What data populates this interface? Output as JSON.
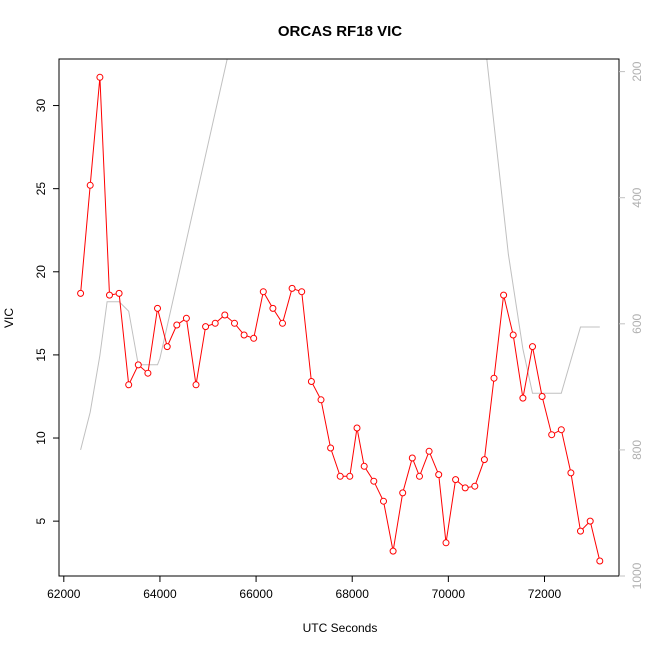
{
  "chart_data": {
    "type": "line",
    "title": "ORCAS RF18 VIC",
    "xlabel": "UTC Seconds",
    "ylabel": "VIC",
    "xlim": [
      61900,
      73550
    ],
    "ylim": [
      1.7,
      32.8
    ],
    "y2lim": [
      1000,
      180
    ],
    "x_ticks": [
      62000,
      64000,
      66000,
      68000,
      70000,
      72000
    ],
    "y_ticks": [
      5,
      10,
      15,
      20,
      25,
      30
    ],
    "y2_ticks": [
      200,
      400,
      600,
      800,
      1000
    ],
    "grid": false,
    "colors": {
      "series": "#ff0000",
      "secondary": "#c0c0c0",
      "axis": "#000000"
    },
    "series": [
      {
        "x": [
          62350,
          62550,
          62750,
          62950,
          63150,
          63350,
          63550,
          63750,
          63950,
          64150,
          64350,
          64550,
          64750,
          64950,
          65150,
          65350,
          65550,
          65750,
          65950,
          66150,
          66350,
          66550,
          66750,
          66950,
          67150,
          67350,
          67550,
          67750,
          67950,
          68100,
          68250,
          68450,
          68650,
          68850,
          69050,
          69250,
          69400,
          69600,
          69800,
          69950,
          70150,
          70350,
          70550,
          70750,
          70950,
          71150,
          71350,
          71550,
          71750,
          71950,
          72150,
          72350,
          72550,
          72750,
          72950,
          73150
        ],
        "y": [
          18.7,
          25.2,
          31.7,
          18.6,
          18.7,
          13.2,
          14.4,
          13.9,
          17.8,
          15.5,
          16.8,
          17.2,
          13.2,
          16.7,
          16.9,
          17.4,
          16.9,
          16.2,
          16.0,
          18.8,
          17.8,
          16.9,
          19.0,
          18.8,
          13.4,
          12.3,
          9.4,
          7.7,
          7.7,
          10.6,
          8.3,
          7.4,
          6.2,
          3.2,
          6.7,
          8.8,
          7.7,
          9.2,
          7.8,
          3.7,
          7.5,
          7.0,
          7.1,
          8.7,
          13.6,
          18.6,
          16.2,
          12.4,
          15.5,
          12.5,
          10.2,
          10.5,
          7.9,
          4.4,
          5.0,
          2.6
        ]
      },
      {
        "axis": "right",
        "x": [
          62350,
          62550,
          62750,
          62900,
          63150,
          63350,
          63550,
          63750,
          63950,
          64000,
          65400,
          65600,
          66550,
          66750,
          66850,
          68850,
          68850,
          70800,
          71250,
          71550,
          71750,
          71950,
          72150,
          72350,
          72750,
          73150
        ],
        "y": [
          800,
          740,
          650,
          565,
          565,
          580,
          665,
          665,
          665,
          655,
          180,
          180,
          180,
          180,
          180,
          180,
          180,
          180,
          490,
          640,
          710,
          710,
          710,
          710,
          605,
          605
        ]
      }
    ]
  }
}
